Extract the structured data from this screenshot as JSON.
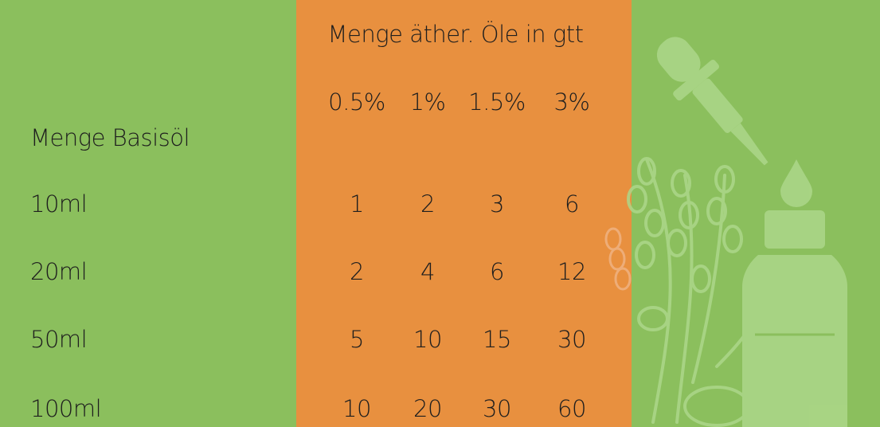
{
  "title": "Menge äther. Öle in gtt",
  "table": {
    "row_header": "Menge Basisöl",
    "columns": [
      "0.5%",
      "1%",
      "1.5%",
      "3%"
    ],
    "rows": [
      {
        "label": "10ml",
        "values": [
          1,
          2,
          3,
          6
        ]
      },
      {
        "label": "20ml",
        "values": [
          2,
          4,
          6,
          12
        ]
      },
      {
        "label": "50ml",
        "values": [
          5,
          10,
          15,
          30
        ]
      },
      {
        "label": "100ml",
        "values": [
          10,
          20,
          30,
          60
        ]
      }
    ]
  }
}
